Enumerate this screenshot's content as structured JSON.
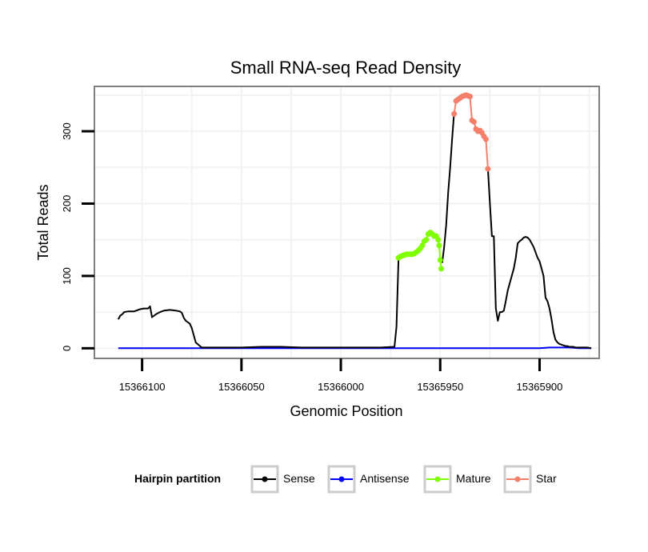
{
  "chart_data": {
    "type": "line",
    "title": "Small RNA-seq Read Density",
    "xlabel": "Genomic Position",
    "ylabel": "Total Reads",
    "xlim": [
      15366124,
      15365870
    ],
    "ylim": [
      -14,
      362
    ],
    "x_reversed": true,
    "xticks": [
      15366100,
      15366050,
      15366000,
      15365950,
      15365900
    ],
    "xtick_labels": [
      "15366100",
      "15366050",
      "15366000",
      "15365950",
      "15365900"
    ],
    "yticks": [
      0,
      100,
      200,
      300
    ],
    "ytick_labels": [
      "0",
      "100",
      "200",
      "300"
    ],
    "grid": true,
    "legend": {
      "title": "Hairpin partition",
      "position": "bottom",
      "entries": [
        "Sense",
        "Antisense",
        "Mature",
        "Star"
      ]
    },
    "colors": {
      "Sense": "#000000",
      "Antisense": "#0000ff",
      "Mature": "#7fff00",
      "Star": "#f4806b",
      "panel_border": "#7f7f7f",
      "grid": "#f2f2f2"
    },
    "series": [
      {
        "name": "Sense",
        "x": [
          15366112,
          15366111,
          15366110,
          15366109,
          15366107,
          15366105,
          15366104,
          15366103,
          15366101,
          15366099,
          15366097,
          15366096,
          15366095,
          15366093,
          15366091,
          15366089,
          15366086,
          15366083,
          15366081,
          15366080,
          15366079,
          15366078,
          15366077,
          15366076,
          15366075,
          15366073,
          15366070,
          15366060,
          15366050,
          15366040,
          15366030,
          15366020,
          15366010,
          15366000,
          15365990,
          15365980,
          15365973,
          15365972,
          15365971
        ],
        "y": [
          40,
          45,
          47,
          50,
          51,
          51,
          51,
          52,
          54,
          55,
          55,
          58,
          43,
          47,
          50,
          52,
          53,
          52,
          51,
          49,
          42,
          38,
          36,
          34,
          28,
          8,
          1,
          1,
          1,
          2,
          2,
          1,
          1,
          1,
          1,
          1,
          2,
          30,
          122
        ]
      },
      {
        "name": "Sense",
        "x": [
          15365949,
          15365948,
          15365947,
          15365946,
          15365945,
          15365944,
          15365943
        ],
        "y": [
          118,
          140,
          170,
          215,
          250,
          290,
          325
        ]
      },
      {
        "name": "Sense",
        "x": [
          15365926,
          15365925,
          15365924,
          15365923,
          15365922,
          15365921,
          15365920,
          15365919,
          15365918,
          15365917,
          15365916,
          15365915,
          15365914,
          15365913,
          15365912,
          15365911,
          15365910,
          15365909,
          15365908,
          15365907,
          15365906,
          15365905,
          15365903,
          15365901,
          15365900,
          15365899,
          15365898,
          15365897,
          15365896,
          15365895,
          15365894,
          15365893,
          15365892,
          15365891,
          15365890,
          15365889,
          15365888,
          15365887,
          15365886,
          15365885,
          15365884,
          15365883,
          15365882,
          15365880,
          15365878,
          15365876,
          15365874
        ],
        "y": [
          248,
          200,
          155,
          155,
          55,
          38,
          50,
          50,
          52,
          65,
          80,
          90,
          100,
          110,
          125,
          145,
          148,
          150,
          153,
          154,
          153,
          150,
          140,
          125,
          120,
          110,
          100,
          70,
          65,
          55,
          40,
          22,
          12,
          8,
          6,
          5,
          4,
          3,
          3,
          2,
          2,
          2,
          1,
          1,
          1,
          1,
          0
        ]
      },
      {
        "name": "Antisense",
        "x": [
          15366112,
          15366060,
          15366000,
          15365950,
          15365900,
          15365895,
          15365885,
          15365880,
          15365874
        ],
        "y": [
          0,
          0,
          0,
          0,
          0,
          1,
          1,
          0,
          0
        ]
      },
      {
        "name": "Mature",
        "x": [
          15365971,
          15365970,
          15365969,
          15365968,
          15365967,
          15365966,
          15365965,
          15365964,
          15365963,
          15365962,
          15365961,
          15365960,
          15365959,
          15365958,
          15365957,
          15365956,
          15365955,
          15365954,
          15365953,
          15365952,
          15365951,
          15365950.5,
          15365950,
          15365949.5
        ],
        "y": [
          125,
          127,
          128,
          129,
          130,
          130,
          130,
          130,
          131,
          133,
          135,
          138,
          142,
          148,
          150,
          158,
          160,
          158,
          155,
          155,
          150,
          142,
          122,
          110
        ]
      },
      {
        "name": "Star",
        "x": [
          15365943,
          15365942,
          15365941,
          15365940,
          15365939,
          15365938,
          15365937,
          15365936,
          15365935,
          15365934,
          15365933,
          15365932,
          15365931,
          15365930,
          15365929,
          15365928,
          15365927,
          15365926
        ],
        "y": [
          324,
          342,
          344,
          346,
          348,
          349,
          350,
          349,
          348,
          315,
          313,
          303,
          300,
          301,
          298,
          293,
          289,
          248
        ]
      }
    ]
  }
}
